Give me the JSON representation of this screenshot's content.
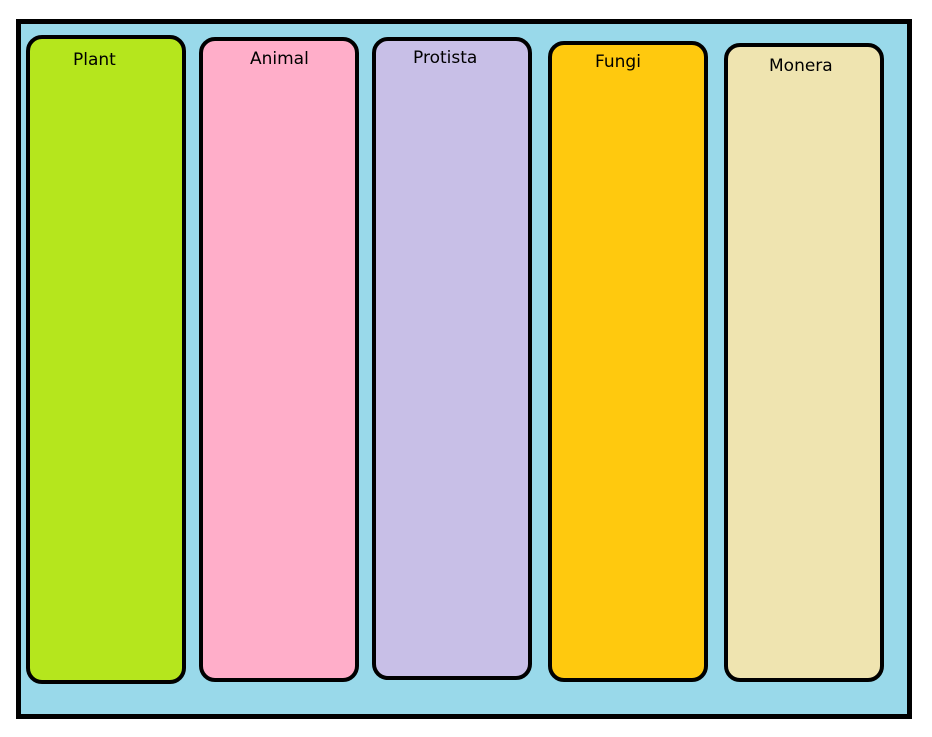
{
  "background_color": "#99D9EA",
  "columns": [
    {
      "label": "Plant",
      "color": "#B5E61D"
    },
    {
      "label": "Animal",
      "color": "#FFAEC9"
    },
    {
      "label": "Protista",
      "color": "#C8BFE7"
    },
    {
      "label": "Fungi",
      "color": "#FFC90E"
    },
    {
      "label": "Monera",
      "color": "#EFE4B0"
    }
  ]
}
